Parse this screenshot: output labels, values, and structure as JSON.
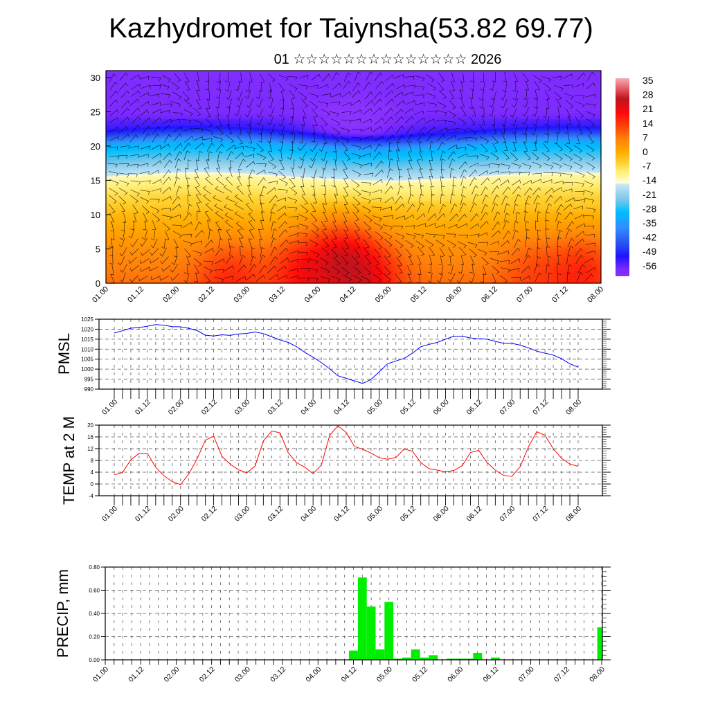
{
  "header": {
    "title": "Kazhydromet for Taiynsha(53.82 69.77)",
    "subtitle": "01 ☆☆☆☆☆☆☆☆☆☆☆☆☆☆ 2026"
  },
  "time_labels": [
    "01.00",
    "01.12",
    "02.00",
    "02.12",
    "03.00",
    "03.12",
    "04.00",
    "04.12",
    "05.00",
    "05.12",
    "06.00",
    "06.12",
    "07.00",
    "07.12",
    "08.00"
  ],
  "chart_data": [
    {
      "id": "cross-section",
      "type": "heatmap",
      "title": "",
      "xlabel": "",
      "ylabel": "",
      "ylim": [
        0,
        31
      ],
      "yticks": [
        "0",
        "5",
        "10",
        "15",
        "20",
        "25",
        "30"
      ],
      "colorbar_labels": [
        "35",
        "28",
        "21",
        "14",
        "7",
        "0",
        "-7",
        "-14",
        "-21",
        "-28",
        "-35",
        "-42",
        "-49",
        "-56"
      ],
      "colorbar_range": [
        -60,
        38
      ],
      "approx_profile": {
        "height": [
          0,
          5,
          10,
          14,
          15.3,
          15.7,
          18,
          20,
          21.5,
          22.5,
          25,
          31
        ],
        "value": [
          10,
          6,
          0,
          -8,
          -11,
          -15,
          -24,
          -30,
          -45,
          -52,
          -57,
          -58
        ]
      },
      "warm_cores": [
        {
          "time_h": 42,
          "height": 1,
          "delta": 8
        },
        {
          "time_h": 66,
          "height": 2,
          "delta": 10
        },
        {
          "time_h": 80,
          "height": 4,
          "delta": 14
        },
        {
          "time_h": 90,
          "height": 1,
          "delta": 10
        },
        {
          "time_h": 162,
          "height": 2,
          "delta": 9
        },
        {
          "time_h": 145,
          "height": 2,
          "delta": 5
        }
      ],
      "overlay": "wind barbs"
    },
    {
      "id": "pmsl",
      "type": "line",
      "ylabel": "PMSL",
      "ylim": [
        990,
        1025
      ],
      "yticks": [
        "990",
        "995",
        "1000",
        "1005",
        "1010",
        "1015",
        "1020",
        "1025"
      ],
      "time_step_h": 3,
      "color": "#0000ff",
      "values": [
        1018.1,
        1019.2,
        1020.5,
        1020.8,
        1021.5,
        1022.3,
        1022.0,
        1021.3,
        1021.2,
        1020.4,
        1019.3,
        1017.0,
        1016.6,
        1017.2,
        1016.9,
        1017.6,
        1017.9,
        1018.6,
        1017.8,
        1016.2,
        1014.6,
        1013.4,
        1011.3,
        1008.4,
        1006.0,
        1003.3,
        1000.2,
        996.7,
        995.4,
        994.1,
        992.8,
        994.9,
        998.7,
        1002.7,
        1004.1,
        1005.4,
        1008.0,
        1011.2,
        1012.4,
        1013.4,
        1015.0,
        1016.5,
        1016.5,
        1015.6,
        1015.2,
        1015.0,
        1013.9,
        1012.9,
        1012.9,
        1012.0,
        1010.7,
        1009.0,
        1008.0,
        1007.0,
        1005.2,
        1002.7,
        1001.0
      ]
    },
    {
      "id": "temp2m",
      "type": "line",
      "ylabel": "TEMP at 2 M",
      "ylim": [
        -4,
        20
      ],
      "yticks": [
        "-4",
        "0",
        "4",
        "8",
        "12",
        "16",
        "20"
      ],
      "time_step_h": 3,
      "color": "#ff0000",
      "values": [
        3.1,
        3.9,
        8.2,
        10.4,
        10.4,
        5.7,
        2.8,
        0.8,
        -0.2,
        3.4,
        8.5,
        14.9,
        16.2,
        9.4,
        6.7,
        4.8,
        3.8,
        6.1,
        14.6,
        18.0,
        17.4,
        10.6,
        7.3,
        5.7,
        3.5,
        6.4,
        16.5,
        19.8,
        17.5,
        12.7,
        11.8,
        10.5,
        8.9,
        8.4,
        9.0,
        11.9,
        11.1,
        7.3,
        5.2,
        4.7,
        4.1,
        4.6,
        6.2,
        10.7,
        11.4,
        7.3,
        4.7,
        2.9,
        2.6,
        5.9,
        12.6,
        17.8,
        16.5,
        12.0,
        8.7,
        6.8,
        6.0
      ]
    },
    {
      "id": "precip",
      "type": "bar",
      "ylabel": "PRECIP, mm",
      "ylim": [
        0,
        0.8
      ],
      "yticks": [
        "0.00",
        "0.20",
        "0.40",
        "0.60",
        "0.80"
      ],
      "time_step_h": 3,
      "color": "#00ee00",
      "values": [
        0,
        0,
        0,
        0,
        0,
        0,
        0,
        0,
        0,
        0,
        0,
        0,
        0,
        0,
        0,
        0,
        0,
        0,
        0,
        0,
        0,
        0,
        0,
        0,
        0,
        0,
        0,
        0,
        0.08,
        0.71,
        0.46,
        0.09,
        0.5,
        0.01,
        0.02,
        0.09,
        0.02,
        0.04,
        0,
        0.01,
        0.01,
        0.01,
        0.06,
        0,
        0.02,
        0,
        0,
        0,
        0,
        0,
        0,
        0,
        0,
        0,
        0,
        0,
        0.28
      ]
    }
  ]
}
